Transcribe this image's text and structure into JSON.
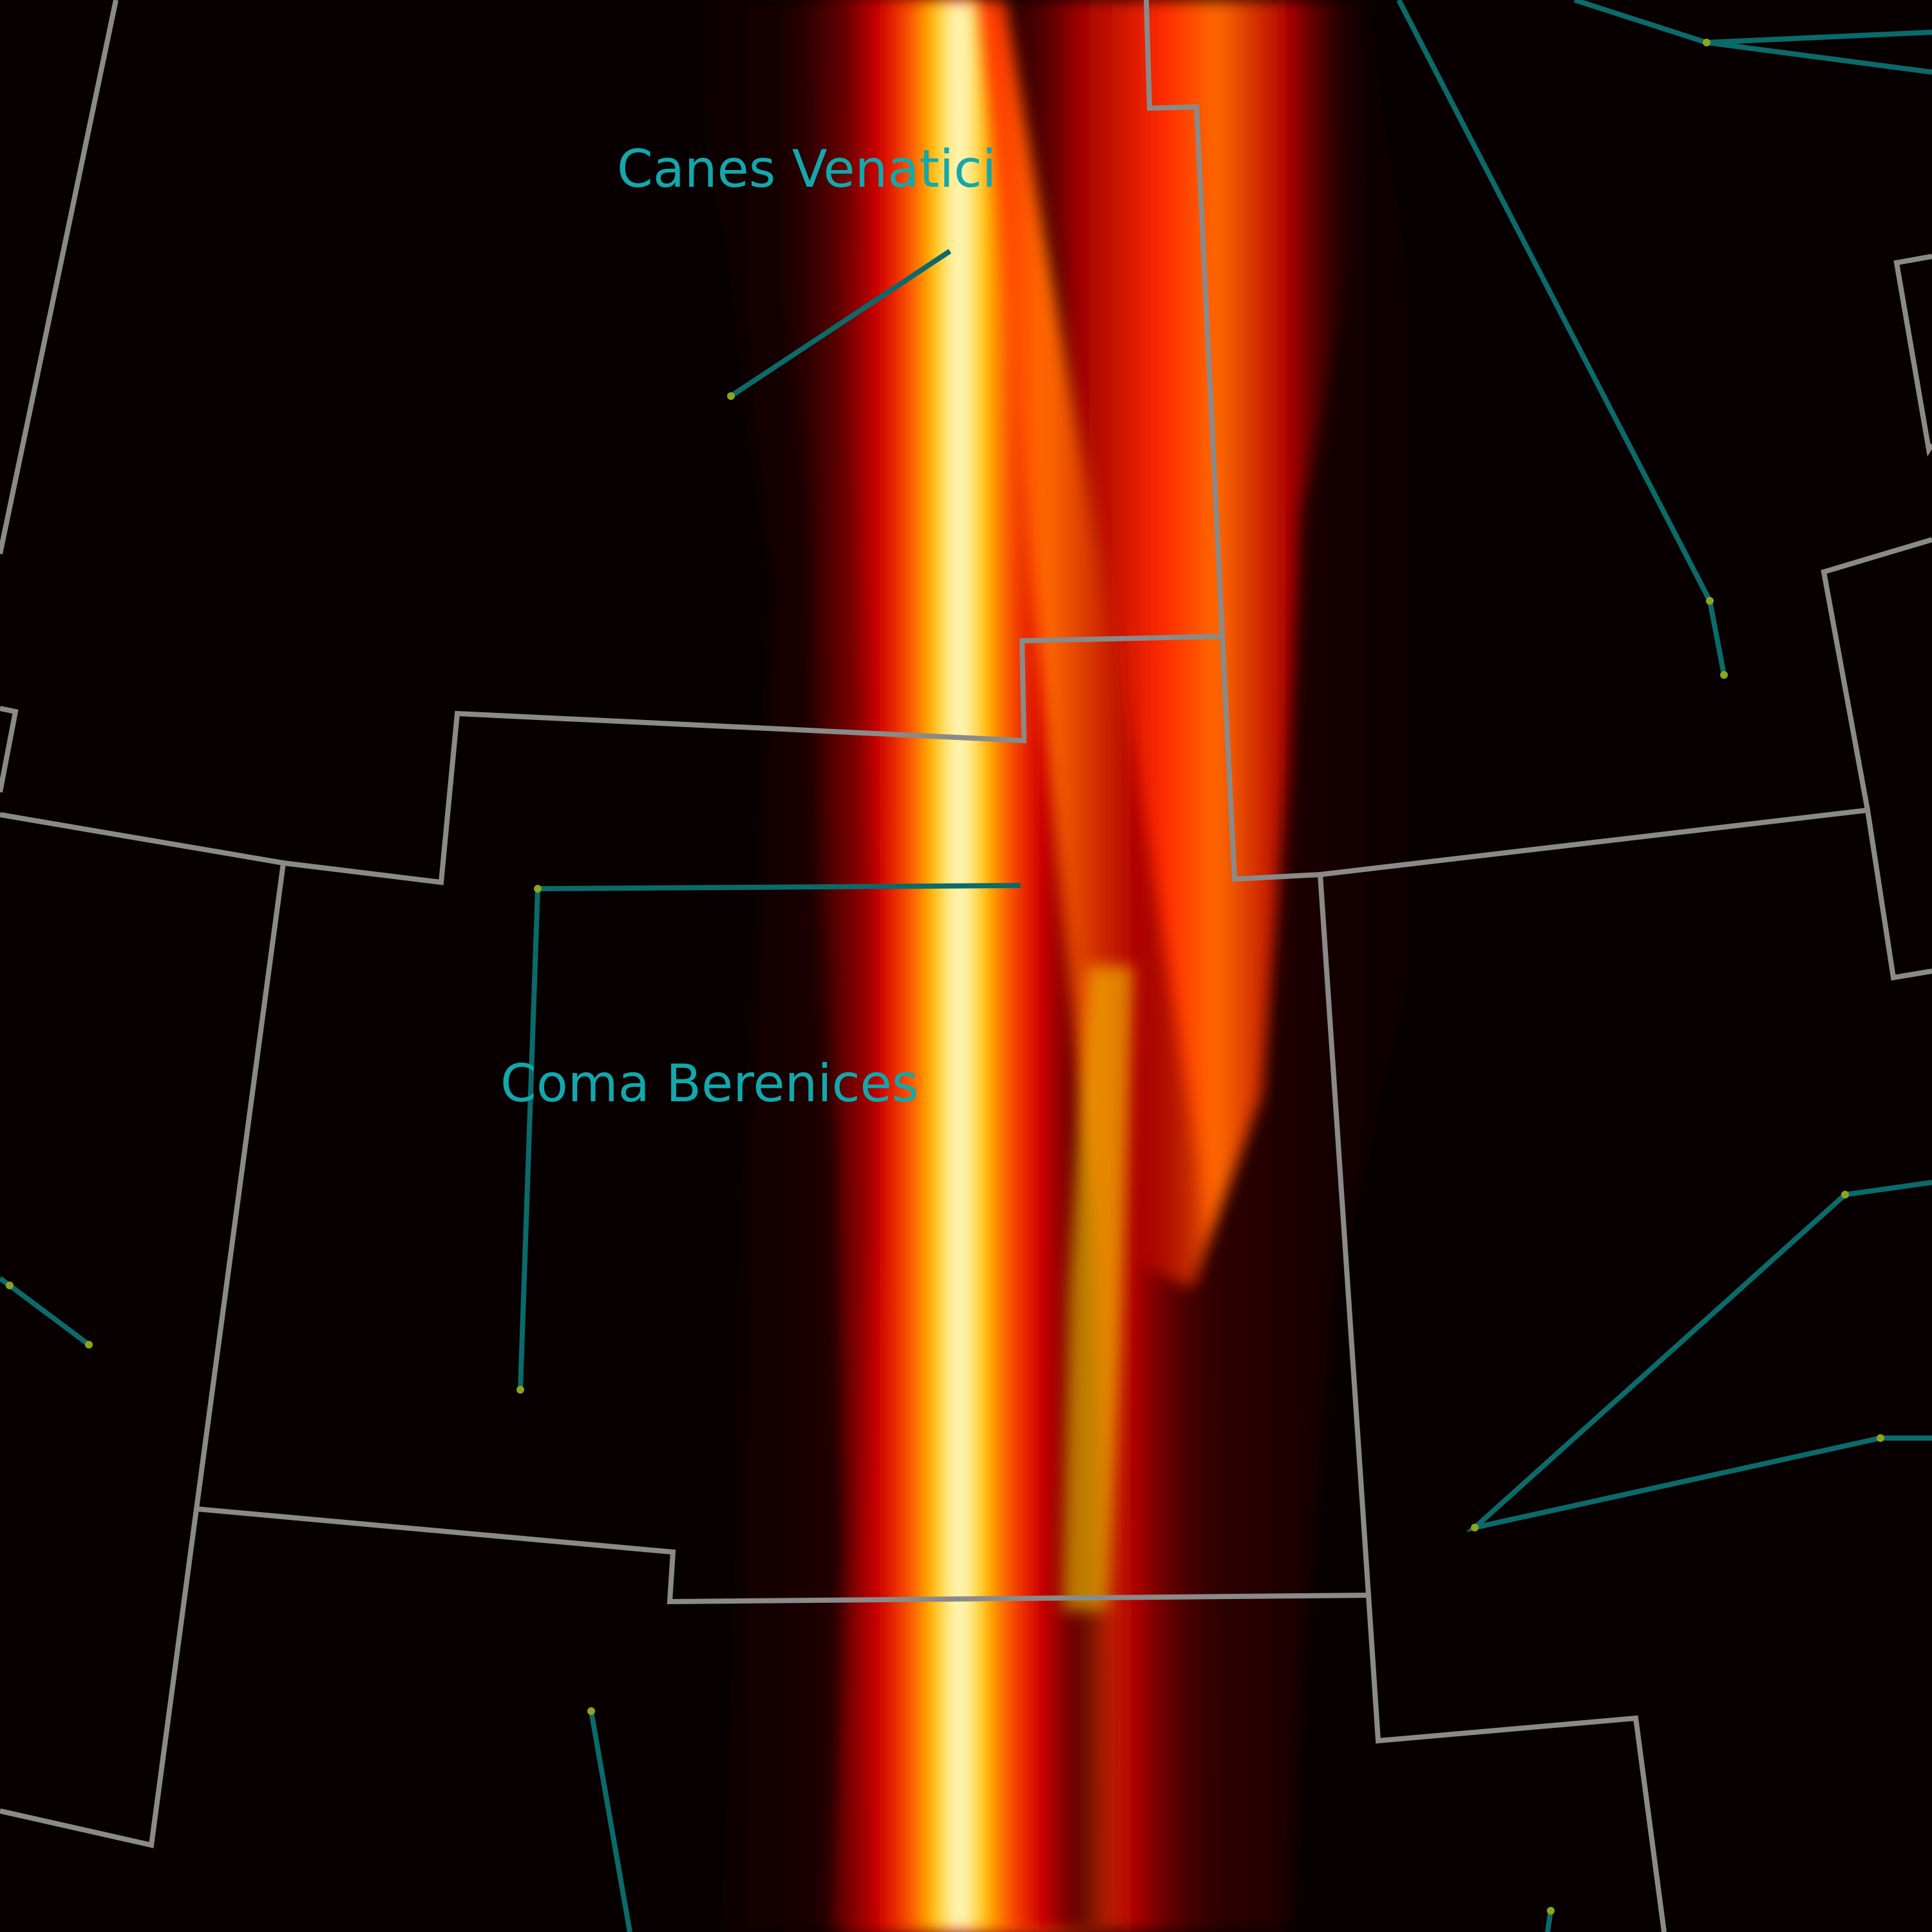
{
  "map": {
    "projection": "sky chart",
    "colors": {
      "background": "#080000",
      "constellation_boundary": "#8a8a8a",
      "constellation_line": "#0b6a6a",
      "star_marker": "#8aa61e",
      "constellation_label": "#12a8ac",
      "heat_low": "#3a0000",
      "heat_mid": "#ff1a00",
      "heat_high": "#ffff00",
      "heat_peak": "#ffffff"
    },
    "colormap": "hot",
    "layers": [
      "intensity-heatmap",
      "constellation-boundaries",
      "constellation-lines",
      "star-markers",
      "constellation-labels"
    ]
  },
  "labels": {
    "canes_venatici": "Canes Venatici",
    "coma_berenices": "Coma Berenices"
  }
}
